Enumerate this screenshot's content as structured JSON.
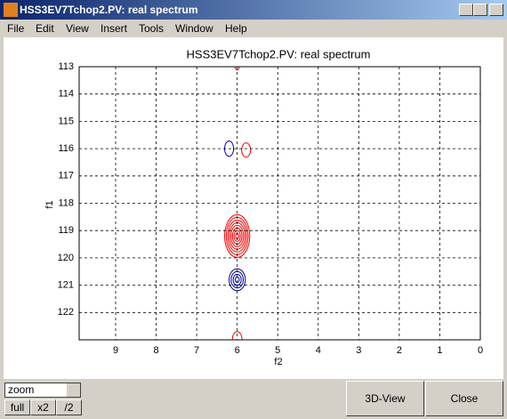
{
  "window": {
    "title": "HSS3EV7Tchop2.PV: real spectrum",
    "menu": [
      "File",
      "Edit",
      "View",
      "Insert",
      "Tools",
      "Window",
      "Help"
    ]
  },
  "chart_data": {
    "type": "contour",
    "title": "HSS3EV7Tchop2.PV: real spectrum",
    "x_label": "f2",
    "y_label": "f1",
    "xlim": [
      9.9,
      0
    ],
    "xticks": [
      9,
      8,
      7,
      6,
      5,
      4,
      3,
      2,
      1,
      0
    ],
    "ylim": [
      113,
      123
    ],
    "yticks": [
      113,
      114,
      115,
      116,
      117,
      118,
      119,
      120,
      121,
      122
    ],
    "grid": true,
    "peaks": [
      {
        "color": "#ff0000",
        "x": 6.0,
        "y": 113,
        "rx": 0.05,
        "ry": 0.12,
        "rings": 1
      },
      {
        "color": "#0000cc",
        "x": 6.2,
        "y": 116,
        "rx": 0.11,
        "ry": 0.28,
        "rings": 1
      },
      {
        "color": "#ff0000",
        "x": 5.78,
        "y": 116.05,
        "rx": 0.11,
        "ry": 0.26,
        "rings": 1
      },
      {
        "color": "#ff0000",
        "x": 6.0,
        "y": 119.2,
        "rx": 0.31,
        "ry": 0.78,
        "rings": 8
      },
      {
        "color": "#000099",
        "x": 6.0,
        "y": 120.8,
        "rx": 0.2,
        "ry": 0.4,
        "rings": 4
      },
      {
        "color": "#ff0000",
        "x": 6.0,
        "y": 123,
        "rx": 0.12,
        "ry": 0.3,
        "rings": 1
      }
    ]
  },
  "controls": {
    "mode_select": "zoom",
    "zoom_buttons": [
      "full",
      "x2",
      "/2"
    ],
    "action_buttons": [
      "3D-View",
      "Close"
    ]
  }
}
